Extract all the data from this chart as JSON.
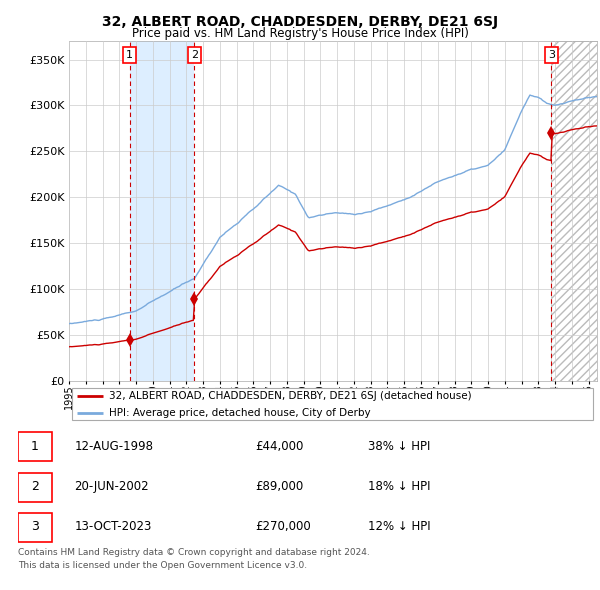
{
  "title": "32, ALBERT ROAD, CHADDESDEN, DERBY, DE21 6SJ",
  "subtitle": "Price paid vs. HM Land Registry's House Price Index (HPI)",
  "transactions": [
    {
      "date_num": 1998.617,
      "price": 44000,
      "label": "1",
      "date_str": "12-AUG-1998"
    },
    {
      "date_num": 2002.472,
      "price": 89000,
      "label": "2",
      "date_str": "20-JUN-2002"
    },
    {
      "date_num": 2023.783,
      "price": 270000,
      "label": "3",
      "date_str": "13-OCT-2023"
    }
  ],
  "transaction_notes": [
    {
      "label": "1",
      "date_str": "12-AUG-1998",
      "price_str": "£44,000",
      "note": "38% ↓ HPI"
    },
    {
      "label": "2",
      "date_str": "20-JUN-2002",
      "price_str": "£89,000",
      "note": "18% ↓ HPI"
    },
    {
      "label": "3",
      "date_str": "13-OCT-2023",
      "price_str": "£270,000",
      "note": "12% ↓ HPI"
    }
  ],
  "xlim": [
    1995.0,
    2026.5
  ],
  "ylim": [
    0,
    370000
  ],
  "yticks": [
    0,
    50000,
    100000,
    150000,
    200000,
    250000,
    300000,
    350000
  ],
  "ytick_labels": [
    "£0",
    "£50K",
    "£100K",
    "£150K",
    "£200K",
    "£250K",
    "£300K",
    "£350K"
  ],
  "xtick_years": [
    1995,
    1996,
    1997,
    1998,
    1999,
    2000,
    2001,
    2002,
    2003,
    2004,
    2005,
    2006,
    2007,
    2008,
    2009,
    2010,
    2011,
    2012,
    2013,
    2014,
    2015,
    2016,
    2017,
    2018,
    2019,
    2020,
    2021,
    2022,
    2023,
    2024,
    2025,
    2026
  ],
  "hpi_color": "#7aaadd",
  "price_color": "#cc0000",
  "marker_color": "#cc0000",
  "vline_color": "#cc0000",
  "shade_color": "#ddeeff",
  "legend_label_price": "32, ALBERT ROAD, CHADDESDEN, DERBY, DE21 6SJ (detached house)",
  "legend_label_hpi": "HPI: Average price, detached house, City of Derby",
  "footer": "Contains HM Land Registry data © Crown copyright and database right 2024.\nThis data is licensed under the Open Government Licence v3.0."
}
